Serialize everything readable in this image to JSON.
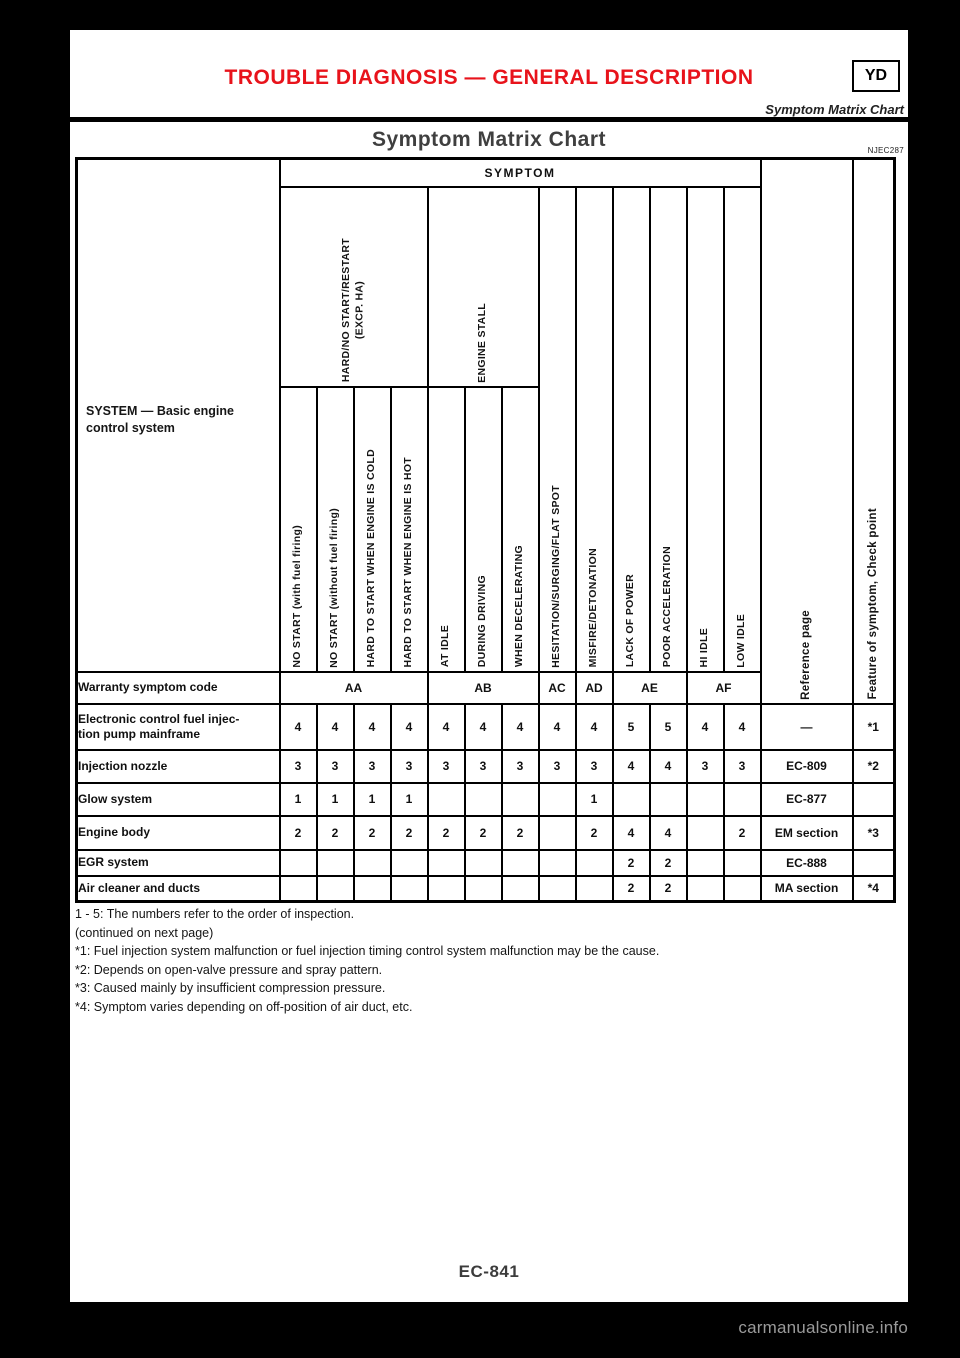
{
  "header": {
    "section_title": "TROUBLE DIAGNOSIS — GENERAL DESCRIPTION",
    "section_code": "YD",
    "breadcrumb": "Symptom Matrix Chart",
    "page_title": "Symptom Matrix Chart",
    "figure_code": "NJEC287"
  },
  "table": {
    "system_label": "SYSTEM — Basic engine control system",
    "symptom_header": "SYMPTOM",
    "groups": [
      {
        "label": "HARD/NO START/RESTART\n(EXCP. HA)",
        "span": 4
      },
      {
        "label": "ENGINE STALL",
        "span": 3
      }
    ],
    "columns": [
      "NO START (with fuel firing)",
      "NO START (without fuel firing)",
      "HARD TO START WHEN ENGINE IS COLD",
      "HARD TO START WHEN ENGINE IS HOT",
      "AT IDLE",
      "DURING DRIVING",
      "WHEN DECELERATING",
      "HESITATION/SURGING/FLAT SPOT",
      "MISFIRE/DETONATION",
      "LACK OF POWER",
      "POOR ACCELERATION",
      "HI IDLE",
      "LOW IDLE"
    ],
    "reference_header": "Reference page",
    "feature_header": "Feature of symptom, Check point",
    "warranty_row": {
      "label": "Warranty symptom code",
      "codes": [
        {
          "code": "AA",
          "span": 4
        },
        {
          "code": "AB",
          "span": 3
        },
        {
          "code": "AC",
          "span": 1
        },
        {
          "code": "AD",
          "span": 1
        },
        {
          "code": "AE",
          "span": 2
        },
        {
          "code": "AF",
          "span": 2
        }
      ]
    },
    "rows": [
      {
        "label": "Electronic control fuel injec-\ntion pump mainframe",
        "values": [
          "4",
          "4",
          "4",
          "4",
          "4",
          "4",
          "4",
          "4",
          "4",
          "5",
          "5",
          "4",
          "4"
        ],
        "reference": "—",
        "feature": "*1"
      },
      {
        "label": "Injection nozzle",
        "values": [
          "3",
          "3",
          "3",
          "3",
          "3",
          "3",
          "3",
          "3",
          "3",
          "4",
          "4",
          "3",
          "3"
        ],
        "reference": "EC-809",
        "feature": "*2"
      },
      {
        "label": "Glow system",
        "values": [
          "1",
          "1",
          "1",
          "1",
          "",
          "",
          "",
          "",
          "1",
          "",
          "",
          "",
          ""
        ],
        "reference": "EC-877",
        "feature": ""
      },
      {
        "label": "Engine body",
        "values": [
          "2",
          "2",
          "2",
          "2",
          "2",
          "2",
          "2",
          "",
          "2",
          "4",
          "4",
          "",
          "2"
        ],
        "reference": "EM section",
        "feature": "*3"
      },
      {
        "label": "EGR system",
        "values": [
          "",
          "",
          "",
          "",
          "",
          "",
          "",
          "",
          "",
          "2",
          "2",
          "",
          ""
        ],
        "reference": "EC-888",
        "feature": ""
      },
      {
        "label": "Air cleaner and ducts",
        "values": [
          "",
          "",
          "",
          "",
          "",
          "",
          "",
          "",
          "",
          "2",
          "2",
          "",
          ""
        ],
        "reference": "MA section",
        "feature": "*4"
      }
    ]
  },
  "notes": [
    "1 - 5: The numbers refer to the order of inspection.",
    "(continued on next page)",
    "*1: Fuel injection system malfunction or fuel injection timing control system malfunction may be the cause.",
    "*2: Depends on open-valve pressure and spray pattern.",
    "*3: Caused mainly by insufficient compression pressure.",
    "*4: Symptom varies depending on off-position of air duct, etc."
  ],
  "footer": {
    "page_number": "EC-841",
    "watermark": "carmanualsonline.info"
  }
}
